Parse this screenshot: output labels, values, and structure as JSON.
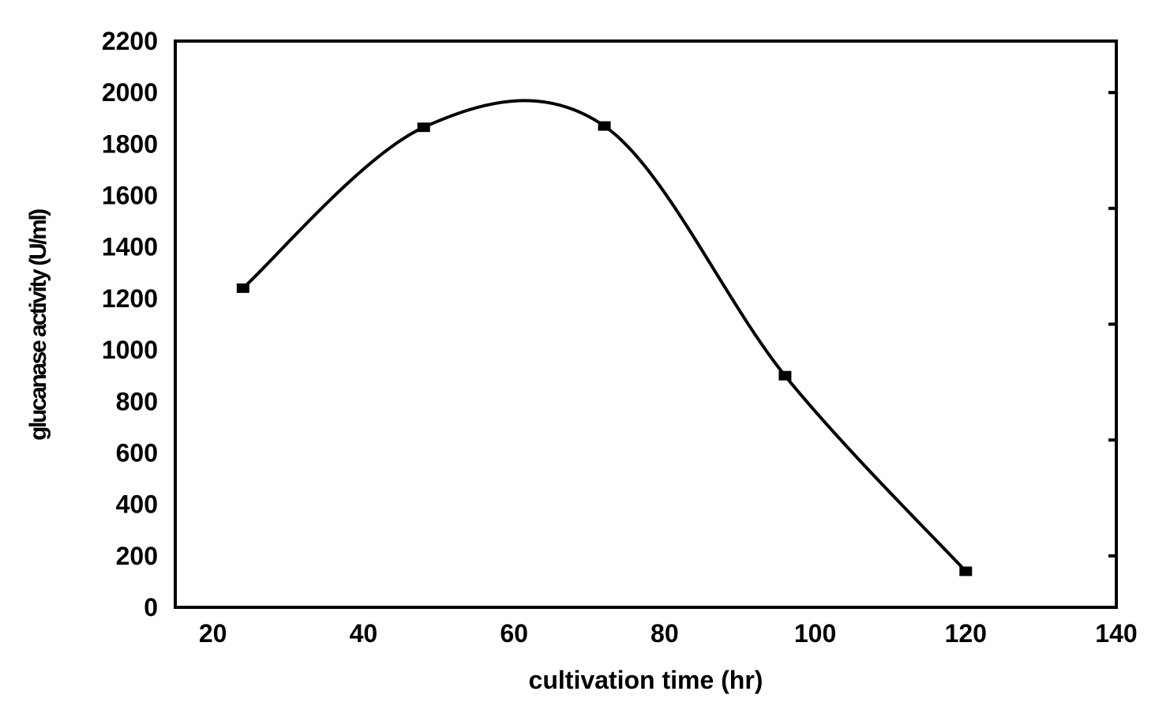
{
  "chart_data": {
    "type": "line",
    "title": "",
    "xlabel": "cultivation time (hr)",
    "ylabel": "glucanase activity (U/ml)",
    "xlim": [
      15,
      140
    ],
    "ylim": [
      0,
      2200
    ],
    "xticks": [
      "20",
      "40",
      "60",
      "80",
      "100",
      "120",
      "140"
    ],
    "yticks": [
      "0",
      "200",
      "400",
      "600",
      "800",
      "1000",
      "1200",
      "1400",
      "1600",
      "1800",
      "2000",
      "2200"
    ],
    "series": [
      {
        "x": [
          24,
          48,
          72,
          96,
          120
        ],
        "y": [
          1240,
          1865,
          1870,
          900,
          140
        ],
        "marker": "square",
        "smooth": true,
        "color": "#000000"
      }
    ],
    "grid": false,
    "legend": "none"
  }
}
